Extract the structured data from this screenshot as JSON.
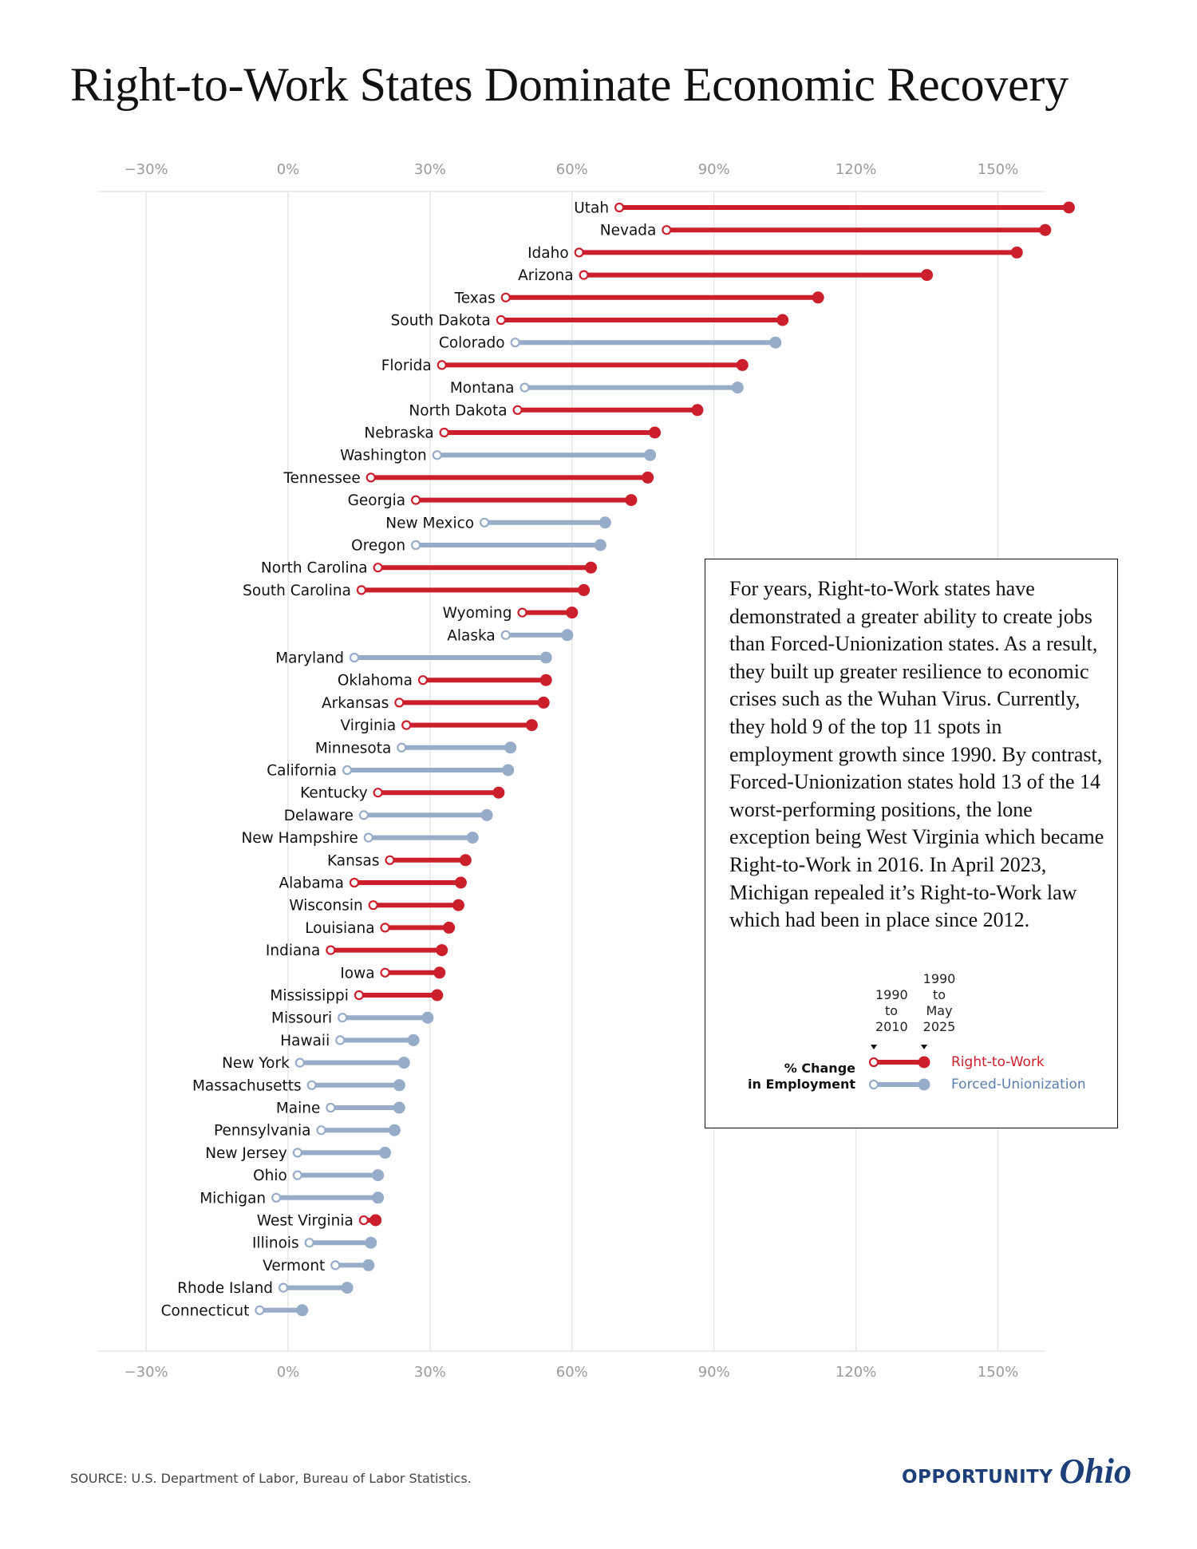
{
  "title": "Right-to-Work States Dominate Economic Recovery",
  "note": "For years, Right-to-Work states have demonstrated a greater ability to create jobs than Forced-Unionization states. As a result, they built up greater resilience to economic crises such as the Wuhan Virus. Currently, they hold 9 of the top 11 spots in employment growth since 1990. By contrast, Forced-Unionization states hold 13 of the 14 worst-performing positions, the lone exception being West Virginia which became Right-to-Work in 2016. In April 2023, Michigan repealed it’s Right-to-Work law which had been in place since 2012.",
  "legend": {
    "measure_line1": "% Change",
    "measure_line2": "in Employment",
    "start_header": [
      "1990",
      "to",
      "2010"
    ],
    "end_header": [
      "1990",
      "to",
      "May",
      "2025"
    ],
    "rtw_label": "Right-to-Work",
    "fu_label": "Forced-Unionization"
  },
  "source": "SOURCE: U.S. Department of Labor, Bureau of Labor Statistics.",
  "brand": {
    "main": "OPPORTUNITY",
    "script": "Ohio"
  },
  "colors": {
    "rtw": "#cc1f2c",
    "fu": "#97acc9",
    "grid": "#e6e6e6"
  },
  "chart_data": {
    "type": "dumbbell",
    "x_axis": {
      "range": [
        -32,
        160
      ],
      "ticks": [
        -30,
        0,
        30,
        60,
        90,
        120,
        150
      ],
      "tick_labels": [
        "−30%",
        "0%",
        "30%",
        "60%",
        "90%",
        "120%",
        "150%"
      ],
      "position": "top and bottom"
    },
    "grid": true,
    "series_keys": [
      "1990 to 2010",
      "1990 to May 2025"
    ],
    "categories": [
      "Right-to-Work",
      "Forced-Unionization"
    ],
    "rows": [
      {
        "state": "Utah",
        "type": "rtw",
        "start": 70,
        "end": 165
      },
      {
        "state": "Nevada",
        "type": "rtw",
        "start": 80,
        "end": 160
      },
      {
        "state": "Idaho",
        "type": "rtw",
        "start": 61.5,
        "end": 154
      },
      {
        "state": "Arizona",
        "type": "rtw",
        "start": 62.5,
        "end": 135
      },
      {
        "state": "Texas",
        "type": "rtw",
        "start": 46,
        "end": 112
      },
      {
        "state": "South Dakota",
        "type": "rtw",
        "start": 45,
        "end": 104.5
      },
      {
        "state": "Colorado",
        "type": "fu",
        "start": 48,
        "end": 103
      },
      {
        "state": "Florida",
        "type": "rtw",
        "start": 32.5,
        "end": 96
      },
      {
        "state": "Montana",
        "type": "fu",
        "start": 50,
        "end": 95
      },
      {
        "state": "North Dakota",
        "type": "rtw",
        "start": 48.5,
        "end": 86.5
      },
      {
        "state": "Nebraska",
        "type": "rtw",
        "start": 33,
        "end": 77.5
      },
      {
        "state": "Washington",
        "type": "fu",
        "start": 31.5,
        "end": 76.5
      },
      {
        "state": "Tennessee",
        "type": "rtw",
        "start": 17.5,
        "end": 76
      },
      {
        "state": "Georgia",
        "type": "rtw",
        "start": 27,
        "end": 72.5
      },
      {
        "state": "New Mexico",
        "type": "fu",
        "start": 41.5,
        "end": 67
      },
      {
        "state": "Oregon",
        "type": "fu",
        "start": 27,
        "end": 66
      },
      {
        "state": "North Carolina",
        "type": "rtw",
        "start": 19,
        "end": 64
      },
      {
        "state": "South Carolina",
        "type": "rtw",
        "start": 15.5,
        "end": 62.5
      },
      {
        "state": "Wyoming",
        "type": "rtw",
        "start": 49.5,
        "end": 60
      },
      {
        "state": "Alaska",
        "type": "fu",
        "start": 46,
        "end": 59
      },
      {
        "state": "Maryland",
        "type": "fu",
        "start": 14,
        "end": 54.5
      },
      {
        "state": "Oklahoma",
        "type": "rtw",
        "start": 28.5,
        "end": 54.5
      },
      {
        "state": "Arkansas",
        "type": "rtw",
        "start": 23.5,
        "end": 54
      },
      {
        "state": "Virginia",
        "type": "rtw",
        "start": 25,
        "end": 51.5
      },
      {
        "state": "Minnesota",
        "type": "fu",
        "start": 24,
        "end": 47
      },
      {
        "state": "California",
        "type": "fu",
        "start": 12.5,
        "end": 46.5
      },
      {
        "state": "Kentucky",
        "type": "rtw",
        "start": 19,
        "end": 44.5
      },
      {
        "state": "Delaware",
        "type": "fu",
        "start": 16,
        "end": 42
      },
      {
        "state": "New Hampshire",
        "type": "fu",
        "start": 17,
        "end": 39
      },
      {
        "state": "Kansas",
        "type": "rtw",
        "start": 21.5,
        "end": 37.5
      },
      {
        "state": "Alabama",
        "type": "rtw",
        "start": 14,
        "end": 36.5
      },
      {
        "state": "Wisconsin",
        "type": "rtw",
        "start": 18,
        "end": 36
      },
      {
        "state": "Louisiana",
        "type": "rtw",
        "start": 20.5,
        "end": 34
      },
      {
        "state": "Indiana",
        "type": "rtw",
        "start": 9,
        "end": 32.5
      },
      {
        "state": "Iowa",
        "type": "rtw",
        "start": 20.5,
        "end": 32
      },
      {
        "state": "Mississippi",
        "type": "rtw",
        "start": 15,
        "end": 31.5
      },
      {
        "state": "Missouri",
        "type": "fu",
        "start": 11.5,
        "end": 29.5
      },
      {
        "state": "Hawaii",
        "type": "fu",
        "start": 11,
        "end": 26.5
      },
      {
        "state": "New York",
        "type": "fu",
        "start": 2.5,
        "end": 24.5
      },
      {
        "state": "Massachusetts",
        "type": "fu",
        "start": 5,
        "end": 23.5
      },
      {
        "state": "Maine",
        "type": "fu",
        "start": 9,
        "end": 23.5
      },
      {
        "state": "Pennsylvania",
        "type": "fu",
        "start": 7,
        "end": 22.5
      },
      {
        "state": "New Jersey",
        "type": "fu",
        "start": 2,
        "end": 20.5
      },
      {
        "state": "Ohio",
        "type": "fu",
        "start": 2,
        "end": 19
      },
      {
        "state": "Michigan",
        "type": "fu",
        "start": -2.5,
        "end": 19
      },
      {
        "state": "West Virginia",
        "type": "rtw",
        "start": 16,
        "end": 18.5
      },
      {
        "state": "Illinois",
        "type": "fu",
        "start": 4.5,
        "end": 17.5
      },
      {
        "state": "Vermont",
        "type": "fu",
        "start": 10,
        "end": 17
      },
      {
        "state": "Rhode Island",
        "type": "fu",
        "start": -1,
        "end": 12.5
      },
      {
        "state": "Connecticut",
        "type": "fu",
        "start": -6,
        "end": 3
      }
    ]
  }
}
